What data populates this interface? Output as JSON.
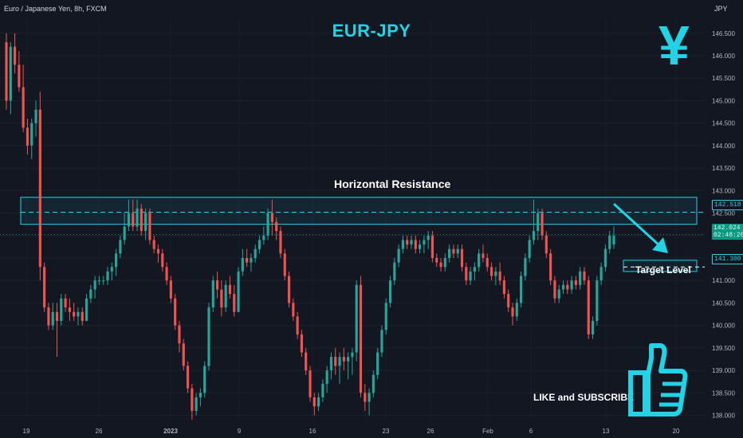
{
  "header": {
    "symbol": "Euro / Japanese Yen, 8h, FXCM",
    "currency": "JPY"
  },
  "title": "EUR-JPY",
  "icon": "yen-icon",
  "annotations": {
    "resistance": "Horizontal Resistance",
    "target": "Target Level",
    "cta": "LIKE and SUBSCRIBE",
    "cta_icon": "thumbs-up-icon"
  },
  "price_tags": {
    "resistance": "142.518",
    "last_price": "142.024",
    "countdown": "02:48:20",
    "target": "141.300"
  },
  "colors": {
    "background": "#131722",
    "up": "#26a69a",
    "down": "#ef5350",
    "accent": "#22d3e6"
  },
  "chart_data": {
    "type": "candlestick",
    "y_ticks": [
      "146.500",
      "146.000",
      "145.500",
      "145.000",
      "144.500",
      "144.000",
      "143.500",
      "143.000",
      "142.500",
      "142.000",
      "141.500",
      "141.000",
      "140.500",
      "140.000",
      "139.500",
      "139.000",
      "138.500",
      "138.000"
    ],
    "x_ticks": [
      "19",
      "26",
      "2023",
      "9",
      "16",
      "23",
      "26",
      "Feb",
      "6",
      "13",
      "20"
    ],
    "ylim": [
      137.85,
      146.85
    ],
    "resistance_zone": [
      142.25,
      142.85
    ],
    "resistance_level": 142.518,
    "target_zone": [
      141.2,
      141.45
    ],
    "target_level": 141.3,
    "last_price": 142.024,
    "grid": true,
    "candles": [
      [
        146.3,
        146.5,
        144.8,
        145.0
      ],
      [
        145.0,
        146.3,
        144.7,
        146.2
      ],
      [
        146.2,
        146.5,
        145.6,
        145.8
      ],
      [
        145.8,
        146.1,
        145.2,
        145.3
      ],
      [
        145.3,
        145.8,
        144.3,
        144.4
      ],
      [
        144.4,
        144.6,
        143.8,
        144.0
      ],
      [
        144.0,
        144.6,
        143.7,
        144.5
      ],
      [
        144.5,
        145.0,
        144.2,
        144.8
      ],
      [
        144.8,
        145.2,
        141.0,
        141.3
      ],
      [
        141.3,
        141.4,
        140.3,
        140.4
      ],
      [
        140.4,
        140.5,
        139.9,
        140.0
      ],
      [
        140.0,
        140.5,
        139.9,
        140.3
      ],
      [
        140.3,
        140.5,
        139.3,
        140.1
      ],
      [
        140.1,
        140.7,
        140.0,
        140.6
      ],
      [
        140.6,
        140.7,
        140.3,
        140.4
      ],
      [
        140.4,
        140.6,
        140.1,
        140.3
      ],
      [
        140.3,
        140.5,
        140.1,
        140.2
      ],
      [
        140.2,
        140.4,
        140.0,
        140.3
      ],
      [
        140.3,
        140.4,
        140.0,
        140.1
      ],
      [
        140.1,
        140.7,
        140.1,
        140.6
      ],
      [
        140.6,
        140.9,
        140.5,
        140.8
      ],
      [
        140.8,
        141.1,
        140.6,
        141.0
      ],
      [
        141.0,
        141.1,
        140.9,
        141.0
      ],
      [
        141.0,
        141.1,
        140.9,
        141.0
      ],
      [
        141.0,
        141.3,
        140.9,
        141.2
      ],
      [
        141.2,
        141.4,
        141.0,
        141.3
      ],
      [
        141.3,
        141.7,
        141.1,
        141.6
      ],
      [
        141.6,
        142.0,
        141.5,
        141.9
      ],
      [
        141.9,
        142.5,
        141.8,
        142.2
      ],
      [
        142.2,
        142.8,
        142.1,
        142.5
      ],
      [
        142.5,
        142.8,
        142.1,
        142.2
      ],
      [
        142.2,
        142.8,
        142.1,
        142.6
      ],
      [
        142.6,
        142.7,
        142.0,
        142.1
      ],
      [
        142.1,
        142.6,
        141.9,
        142.5
      ],
      [
        142.5,
        142.6,
        141.8,
        141.9
      ],
      [
        141.9,
        142.0,
        141.6,
        141.7
      ],
      [
        141.7,
        141.8,
        141.4,
        141.6
      ],
      [
        141.6,
        141.7,
        141.2,
        141.3
      ],
      [
        141.3,
        141.4,
        140.9,
        141.0
      ],
      [
        141.0,
        141.1,
        140.5,
        140.6
      ],
      [
        140.6,
        140.7,
        139.9,
        140.0
      ],
      [
        140.0,
        140.1,
        139.4,
        139.6
      ],
      [
        139.6,
        139.7,
        139.0,
        139.1
      ],
      [
        139.1,
        139.2,
        138.5,
        138.6
      ],
      [
        138.6,
        138.7,
        137.9,
        138.1
      ],
      [
        138.1,
        138.5,
        138.0,
        138.4
      ],
      [
        138.4,
        138.6,
        138.2,
        138.5
      ],
      [
        138.5,
        139.2,
        138.4,
        139.1
      ],
      [
        139.1,
        140.5,
        139.0,
        140.4
      ],
      [
        140.4,
        141.1,
        140.3,
        141.0
      ],
      [
        141.0,
        141.2,
        140.6,
        140.8
      ],
      [
        140.8,
        141.0,
        140.2,
        140.4
      ],
      [
        140.4,
        141.0,
        140.3,
        140.9
      ],
      [
        140.9,
        141.1,
        140.6,
        140.7
      ],
      [
        140.7,
        140.9,
        140.2,
        140.3
      ],
      [
        140.3,
        141.3,
        140.3,
        141.2
      ],
      [
        141.2,
        141.7,
        141.1,
        141.5
      ],
      [
        141.5,
        141.7,
        141.3,
        141.4
      ],
      [
        141.4,
        141.6,
        141.2,
        141.5
      ],
      [
        141.5,
        141.8,
        141.4,
        141.7
      ],
      [
        141.7,
        142.0,
        141.6,
        141.9
      ],
      [
        141.9,
        142.2,
        141.8,
        142.0
      ],
      [
        142.0,
        142.6,
        141.9,
        142.5
      ],
      [
        142.5,
        142.8,
        142.0,
        142.3
      ],
      [
        142.3,
        142.4,
        141.9,
        142.1
      ],
      [
        142.1,
        142.2,
        141.5,
        141.6
      ],
      [
        141.6,
        141.7,
        141.0,
        141.1
      ],
      [
        141.1,
        141.2,
        140.4,
        140.5
      ],
      [
        140.5,
        140.6,
        140.1,
        140.2
      ],
      [
        140.2,
        140.3,
        139.7,
        139.8
      ],
      [
        139.8,
        139.9,
        139.3,
        139.4
      ],
      [
        139.4,
        139.5,
        138.9,
        139.0
      ],
      [
        139.0,
        139.1,
        138.3,
        138.4
      ],
      [
        138.4,
        138.5,
        138.0,
        138.2
      ],
      [
        138.2,
        138.5,
        138.1,
        138.4
      ],
      [
        138.4,
        138.8,
        138.3,
        138.7
      ],
      [
        138.7,
        139.1,
        138.5,
        139.0
      ],
      [
        139.0,
        139.4,
        138.8,
        139.3
      ],
      [
        139.3,
        139.5,
        138.9,
        139.1
      ],
      [
        139.1,
        139.4,
        138.7,
        139.3
      ],
      [
        139.3,
        139.5,
        139.0,
        139.2
      ],
      [
        139.2,
        139.4,
        138.8,
        139.3
      ],
      [
        139.3,
        139.5,
        138.9,
        139.4
      ],
      [
        139.4,
        141.0,
        139.2,
        140.9
      ],
      [
        140.9,
        141.1,
        138.4,
        138.5
      ],
      [
        138.5,
        138.7,
        138.1,
        138.3
      ],
      [
        138.3,
        138.6,
        138.0,
        138.5
      ],
      [
        138.5,
        139.0,
        138.4,
        138.9
      ],
      [
        138.9,
        139.5,
        138.8,
        139.4
      ],
      [
        139.4,
        140.0,
        139.3,
        139.9
      ],
      [
        139.9,
        140.6,
        139.8,
        140.5
      ],
      [
        140.5,
        141.1,
        140.4,
        141.0
      ],
      [
        141.0,
        141.5,
        140.9,
        141.4
      ],
      [
        141.4,
        141.8,
        141.3,
        141.7
      ],
      [
        141.7,
        142.0,
        141.6,
        141.9
      ],
      [
        141.9,
        142.0,
        141.7,
        141.8
      ],
      [
        141.8,
        142.0,
        141.7,
        141.9
      ],
      [
        141.9,
        142.0,
        141.6,
        141.7
      ],
      [
        141.7,
        141.9,
        141.6,
        141.8
      ],
      [
        141.8,
        142.0,
        141.6,
        141.9
      ],
      [
        141.9,
        142.1,
        141.7,
        142.0
      ],
      [
        142.0,
        142.1,
        141.4,
        141.5
      ],
      [
        141.5,
        141.6,
        141.3,
        141.4
      ],
      [
        141.4,
        141.5,
        141.2,
        141.3
      ],
      [
        141.3,
        141.6,
        141.2,
        141.5
      ],
      [
        141.5,
        141.8,
        141.4,
        141.7
      ],
      [
        141.7,
        141.8,
        141.5,
        141.6
      ],
      [
        141.6,
        141.8,
        141.5,
        141.7
      ],
      [
        141.7,
        141.8,
        141.2,
        141.3
      ],
      [
        141.3,
        141.4,
        140.9,
        141.0
      ],
      [
        141.0,
        141.3,
        140.9,
        141.2
      ],
      [
        141.2,
        141.4,
        141.0,
        141.3
      ],
      [
        141.3,
        141.7,
        141.2,
        141.6
      ],
      [
        141.6,
        141.8,
        141.4,
        141.5
      ],
      [
        141.5,
        141.6,
        141.2,
        141.3
      ],
      [
        141.3,
        141.4,
        141.0,
        141.1
      ],
      [
        141.1,
        141.3,
        140.9,
        141.2
      ],
      [
        141.2,
        141.4,
        140.9,
        141.0
      ],
      [
        141.0,
        141.1,
        140.6,
        140.7
      ],
      [
        140.7,
        140.8,
        140.3,
        140.4
      ],
      [
        140.4,
        140.5,
        140.0,
        140.2
      ],
      [
        140.2,
        140.6,
        140.1,
        140.5
      ],
      [
        140.5,
        141.2,
        140.4,
        141.1
      ],
      [
        141.1,
        141.6,
        141.0,
        141.5
      ],
      [
        141.5,
        142.0,
        141.4,
        141.9
      ],
      [
        141.9,
        142.8,
        141.8,
        142.1
      ],
      [
        142.1,
        142.6,
        141.9,
        142.5
      ],
      [
        142.5,
        142.6,
        141.9,
        142.0
      ],
      [
        142.0,
        142.1,
        141.5,
        141.6
      ],
      [
        141.6,
        141.7,
        140.9,
        141.0
      ],
      [
        141.0,
        141.1,
        140.5,
        140.6
      ],
      [
        140.6,
        140.9,
        140.5,
        140.8
      ],
      [
        140.8,
        141.0,
        140.7,
        140.9
      ],
      [
        140.9,
        141.0,
        140.7,
        140.8
      ],
      [
        140.8,
        141.1,
        140.7,
        141.0
      ],
      [
        141.0,
        141.1,
        140.8,
        140.9
      ],
      [
        140.9,
        141.3,
        140.8,
        141.2
      ],
      [
        141.2,
        141.3,
        140.9,
        141.0
      ],
      [
        141.0,
        141.1,
        139.7,
        139.8
      ],
      [
        139.8,
        140.2,
        139.7,
        140.1
      ],
      [
        140.1,
        141.1,
        140.0,
        141.0
      ],
      [
        141.0,
        141.4,
        140.9,
        141.3
      ],
      [
        141.3,
        141.8,
        141.2,
        141.7
      ],
      [
        141.7,
        142.1,
        141.6,
        142.0
      ],
      [
        141.8,
        142.2,
        141.7,
        142.0
      ]
    ]
  }
}
